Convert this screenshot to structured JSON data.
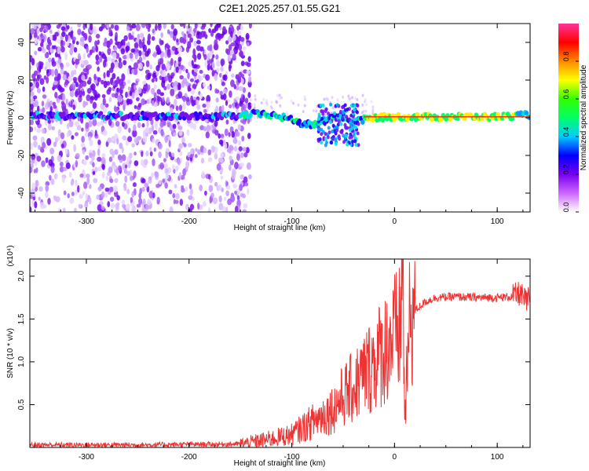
{
  "figure": {
    "title": "C2E1.2025.257.01.55.G21"
  },
  "colorbar": {
    "label": "Normalized spectral amplitude",
    "ticks": [
      "0.0",
      "0.2",
      "0.4",
      "0.6",
      "0.8"
    ],
    "stops": [
      "#ffffff",
      "#cc66ff",
      "#7700ee",
      "#0000ff",
      "#00ccff",
      "#00ff66",
      "#33ff00",
      "#ffff00",
      "#ff8800",
      "#ff0000",
      "#ff3399"
    ]
  },
  "chart_data": [
    {
      "type": "heatmap",
      "name": "spectrogram",
      "xlabel": "Height of straight line (km)",
      "ylabel": "Frequency (Hz)",
      "xlim": [
        -355,
        132
      ],
      "ylim": [
        -50,
        50
      ],
      "xticks": [
        "-300",
        "-200",
        "-100",
        "0",
        "100"
      ],
      "xtick_values": [
        -300,
        -200,
        -100,
        0,
        100
      ],
      "yticks": [
        "40",
        "20",
        "0",
        "-20",
        "-40"
      ],
      "ytick_values": [
        40,
        20,
        0,
        -20,
        -40
      ],
      "carrier_track": {
        "x": [
          -355,
          -150,
          -140,
          -120,
          -100,
          -90,
          -80,
          -70,
          -60,
          -50,
          -40,
          -30,
          -20,
          0,
          50,
          100,
          132
        ],
        "y": [
          1,
          1,
          2,
          1.5,
          -1,
          -3,
          -4,
          -2,
          1,
          0,
          -2,
          -1,
          0,
          0.5,
          0.5,
          0.5,
          1.5
        ]
      }
    },
    {
      "type": "line",
      "name": "snr",
      "xlabel": "Height of straight line (km)",
      "ylabel": "SNR (10 * v/v)",
      "scale_label": "(x10⁴)",
      "xlim": [
        -355,
        132
      ],
      "ylim": [
        0,
        2.2
      ],
      "xticks": [
        "-300",
        "-200",
        "-100",
        "0",
        "100"
      ],
      "xtick_values": [
        -300,
        -200,
        -100,
        0,
        100
      ],
      "yticks": [
        "2.0",
        "1.5",
        "1.0",
        "0.5"
      ],
      "ytick_values": [
        2.0,
        1.5,
        1.0,
        0.5
      ],
      "color": "#ee3333",
      "series": [
        {
          "name": "SNR",
          "x": [
            -355,
            -250,
            -150,
            -120,
            -100,
            -80,
            -60,
            -50,
            -40,
            -30,
            -20,
            -10,
            0,
            5,
            8,
            10,
            15,
            20,
            30,
            40,
            60,
            80,
            100,
            115,
            122,
            128,
            132
          ],
          "y": [
            0.03,
            0.03,
            0.04,
            0.1,
            0.15,
            0.3,
            0.45,
            0.6,
            0.7,
            0.85,
            1.0,
            1.15,
            1.3,
            1.35,
            2.1,
            0.3,
            1.5,
            1.6,
            1.7,
            1.75,
            1.76,
            1.75,
            1.75,
            1.76,
            1.8,
            1.7,
            1.75
          ]
        }
      ]
    }
  ]
}
